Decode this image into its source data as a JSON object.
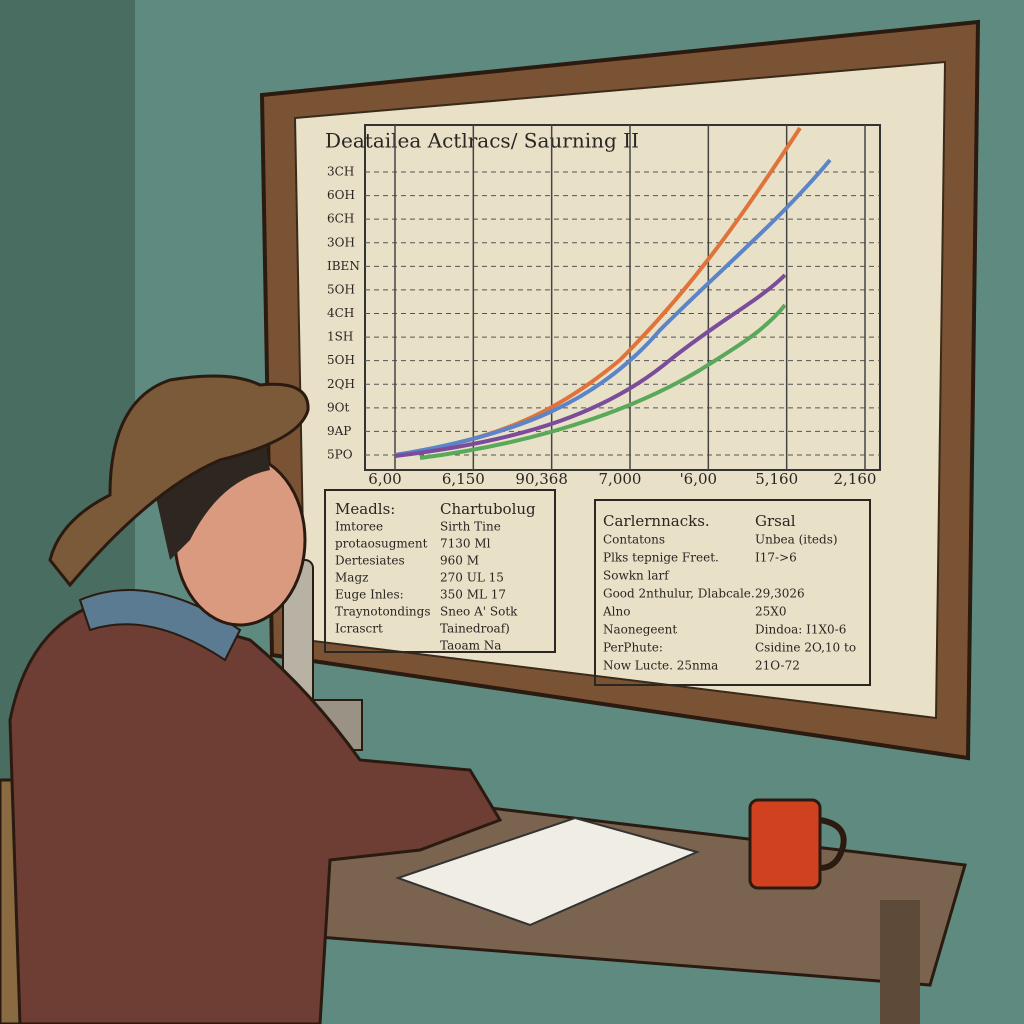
{
  "chart": {
    "title": "Deatailea Actlracs/ Saurning II",
    "y_labels": [
      "3CH",
      "6OH",
      "6CH",
      "3OH",
      "IBEN",
      "5OH",
      "4CH",
      "1SH",
      "5OH",
      "2QH",
      "9Ot",
      "9AP",
      "5PO"
    ],
    "x_labels": [
      "6,00",
      "6,150",
      "90,368",
      "7,000",
      "'6,00",
      "5,160",
      "2,160"
    ]
  },
  "left_table": {
    "header": [
      "Meadls:",
      "Chartubolug"
    ],
    "rows": [
      [
        "Imtoree",
        "Sirth Tine"
      ],
      [
        "protaosugment",
        "7130 Ml"
      ],
      [
        "Dertesiates",
        "960 M"
      ],
      [
        "Magz",
        "270 UL   15"
      ],
      [
        "Euge Inles:",
        "350 ML   17"
      ],
      [
        "Traynotondings",
        "Sneo A'  Sotk"
      ],
      [
        "Icrascrt",
        "Tainedroaf)"
      ],
      [
        "Taoam  Na"
      ]
    ]
  },
  "right_table": {
    "header": [
      "Carlernnacks.",
      "Grsal"
    ],
    "rows": [
      [
        "Contatons",
        "Unbea (iteds)"
      ],
      [
        "Plks tepnige Freet.",
        "I17->6"
      ],
      [
        "Sowkn larf"
      ],
      [
        "Good 2nthulur, Dlabcale.",
        "29,3026"
      ],
      [
        "Alno",
        "25X0"
      ],
      [
        "Naonegeent",
        "Dindoa: I1X0-6"
      ],
      [
        "PerPhute:",
        "Csidine  2O,10 to"
      ],
      [
        "Now Lucte. 25nma",
        "21O-72"
      ]
    ]
  }
}
